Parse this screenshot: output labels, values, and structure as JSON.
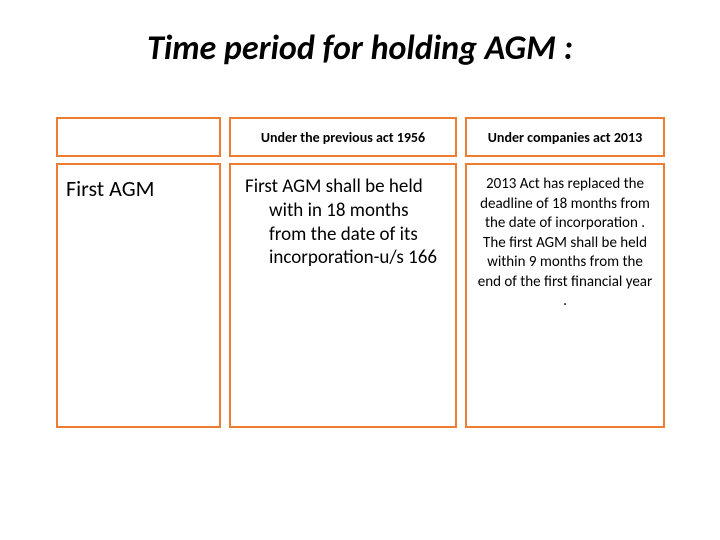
{
  "title": "Time period for holding AGM :",
  "border_color": "#ed7d31",
  "table": {
    "columns": [
      {
        "key": "label",
        "header": ""
      },
      {
        "key": "prev",
        "header": "Under the previous act 1956"
      },
      {
        "key": "curr",
        "header": "Under companies act 2013"
      }
    ],
    "rows": [
      {
        "label": "First AGM",
        "prev": "First AGM shall be held with in 18 months from the date of its incorporation-u/s 166",
        "curr": "2013 Act has replaced the deadline of 18 months from the date of incorporation . The first AGM shall be held within 9 months from the end of the first financial year ."
      }
    ]
  }
}
